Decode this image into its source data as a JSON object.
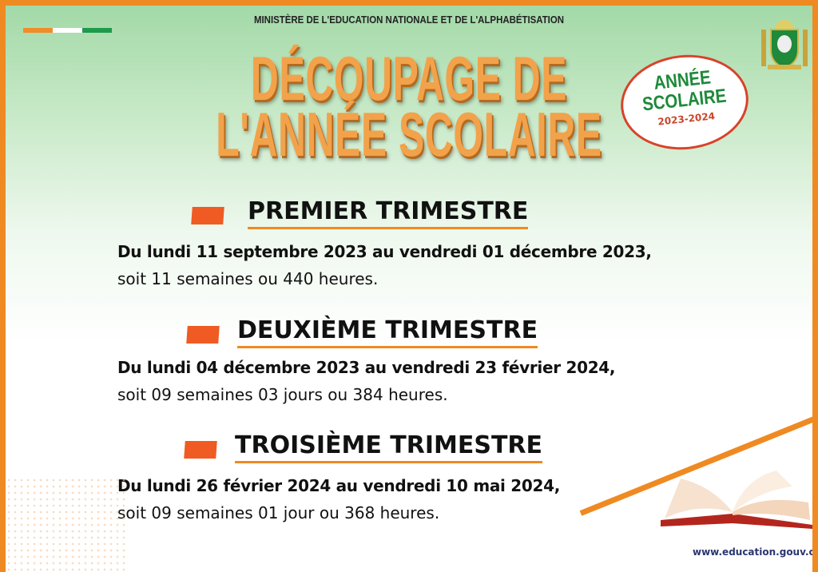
{
  "header": {
    "ministry": "MINISTÈRE DE L'EDUCATION NATIONALE ET DE L'ALPHABÉTISATION",
    "title_line1": "DÉCOUPAGE DE",
    "title_line2": "L'ANNÉE SCOLAIRE",
    "badge": {
      "line1": "ANNÉE",
      "line2": "SCOLAIRE",
      "years": "2023-2024"
    },
    "flag_colors": [
      "#f28c28",
      "#ffffff",
      "#1e9a4a"
    ]
  },
  "sections": [
    {
      "heading": "PREMIER TRIMESTRE",
      "dates": "Du lundi 11 septembre 2023 au vendredi 01 décembre 2023,",
      "duration": "soit 11 semaines  ou 440 heures."
    },
    {
      "heading": "DEUXIÈME TRIMESTRE",
      "dates": "Du lundi 04 décembre 2023 au vendredi 23 février 2024,",
      "duration": "soit 09 semaines 03 jours ou 384 heures."
    },
    {
      "heading": "TROISIÈME TRIMESTRE",
      "dates": "Du lundi 26 février 2024 au vendredi 10 mai 2024,",
      "duration": "soit 09 semaines 01 jour ou 368 heures."
    }
  ],
  "footer": {
    "url": "www.education.gouv.ci"
  },
  "colors": {
    "accent": "#ef8a22",
    "square": "#ef5b22",
    "green": "#1e8a3a"
  }
}
